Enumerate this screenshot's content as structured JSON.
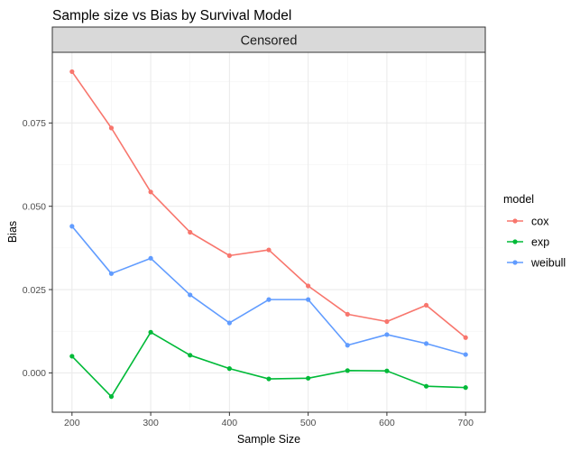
{
  "chart_data": {
    "type": "line",
    "title": "Sample size vs Bias by Survival Model",
    "facet_label": "Censored",
    "xlabel": "Sample Size",
    "ylabel": "Bias",
    "xlim": [
      175,
      725
    ],
    "ylim": [
      -0.0118,
      0.0962
    ],
    "x_ticks": [
      200,
      300,
      400,
      500,
      600,
      700
    ],
    "x_tick_labels": [
      "200",
      "300",
      "400",
      "500",
      "600",
      "700"
    ],
    "y_ticks": [
      0.0,
      0.025,
      0.05,
      0.075
    ],
    "y_tick_labels": [
      "0.000",
      "0.025",
      "0.050",
      "0.075"
    ],
    "grid": true,
    "legend": {
      "title": "model",
      "position": "right"
    },
    "x": [
      200,
      250,
      300,
      350,
      400,
      450,
      500,
      550,
      600,
      650,
      700
    ],
    "series": [
      {
        "name": "cox",
        "color": "#F8766D",
        "values": [
          0.0904,
          0.0735,
          0.0543,
          0.0422,
          0.0352,
          0.0369,
          0.0261,
          0.0176,
          0.0154,
          0.0203,
          0.0106
        ]
      },
      {
        "name": "exp",
        "color": "#00BA38",
        "values": [
          0.005,
          -0.0071,
          0.0122,
          0.0053,
          0.0013,
          -0.0018,
          -0.0016,
          0.0007,
          0.0006,
          -0.004,
          -0.0044
        ]
      },
      {
        "name": "weibull",
        "color": "#619CFF",
        "values": [
          0.044,
          0.0298,
          0.0344,
          0.0234,
          0.015,
          0.022,
          0.022,
          0.0083,
          0.0115,
          0.0088,
          0.0055
        ]
      }
    ]
  }
}
